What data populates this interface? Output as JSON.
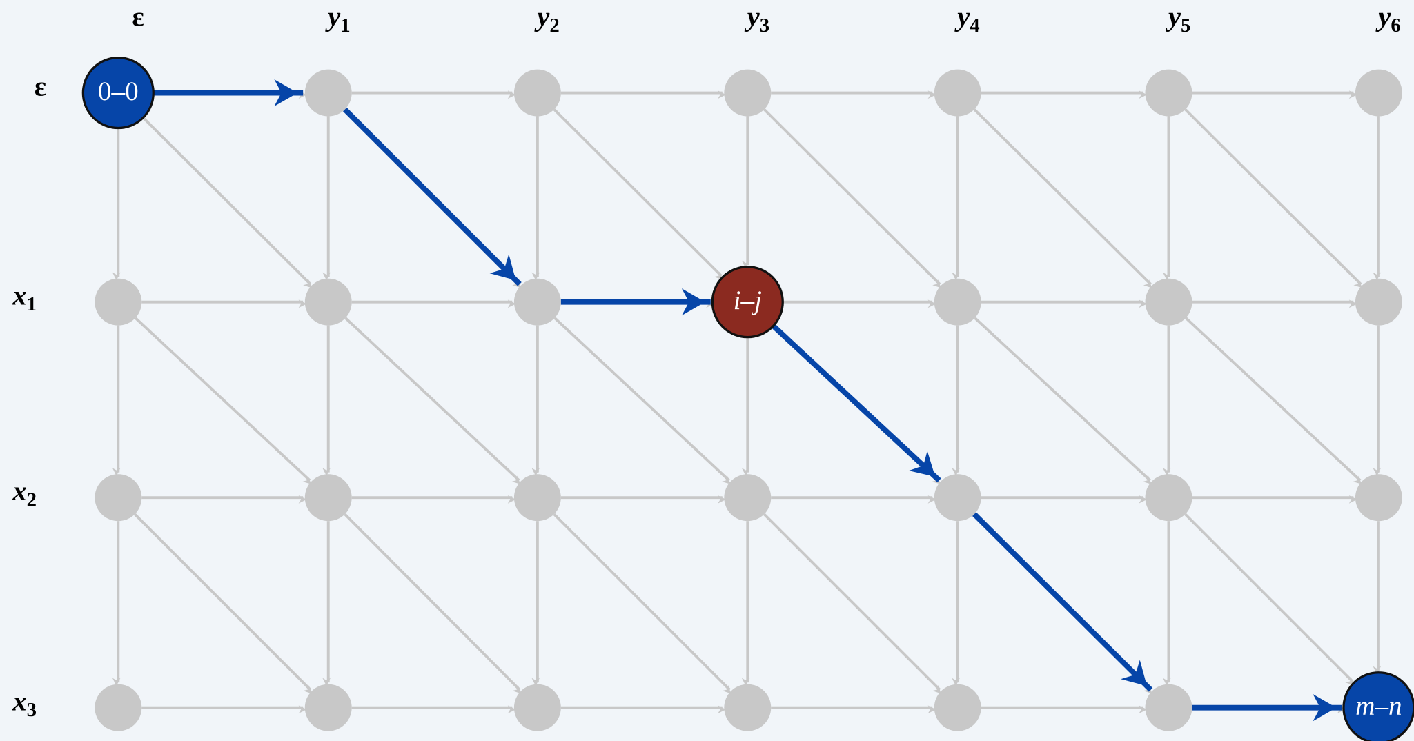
{
  "columns": [
    {
      "var": "ε"
    },
    {
      "var": "y",
      "sub": "1"
    },
    {
      "var": "y",
      "sub": "2"
    },
    {
      "var": "y",
      "sub": "3"
    },
    {
      "var": "y",
      "sub": "4"
    },
    {
      "var": "y",
      "sub": "5"
    },
    {
      "var": "y",
      "sub": "6"
    }
  ],
  "rows": [
    {
      "var": "ε"
    },
    {
      "var": "x",
      "sub": "1"
    },
    {
      "var": "x",
      "sub": "2"
    },
    {
      "var": "x",
      "sub": "3"
    }
  ],
  "nodes": {
    "start": "0–0",
    "current": "i–j",
    "end": "m–n"
  }
}
